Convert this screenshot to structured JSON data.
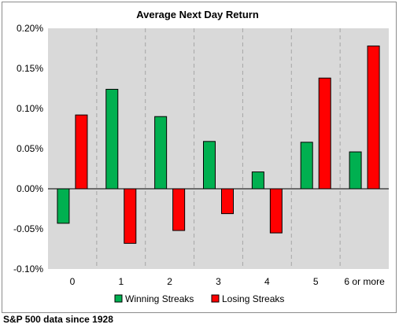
{
  "chart_data": {
    "type": "bar",
    "title": "Average Next Day Return",
    "categories": [
      "0",
      "1",
      "2",
      "3",
      "4",
      "5",
      "6 or more"
    ],
    "series": [
      {
        "name": "Winning Streaks",
        "color": "#00b050",
        "values": [
          -0.043,
          0.124,
          0.09,
          0.059,
          0.021,
          0.058,
          0.046
        ]
      },
      {
        "name": "Losing Streaks",
        "color": "#ff0000",
        "values": [
          0.092,
          -0.068,
          -0.052,
          -0.031,
          -0.055,
          0.138,
          0.178
        ]
      }
    ],
    "ylim": [
      -0.1,
      0.2
    ],
    "yticks": [
      -0.1,
      -0.05,
      0.0,
      0.05,
      0.1,
      0.15,
      0.2
    ],
    "ytick_labels": [
      "-0.10%",
      "-0.05%",
      "0.00%",
      "0.05%",
      "0.10%",
      "0.15%",
      "0.20%"
    ],
    "y_unit": "%",
    "plot_background": "#d9d9d9",
    "gridlines": "dashed vertical between categories",
    "legend_position": "bottom",
    "xlabel": "",
    "ylabel": ""
  },
  "footnote": "S&P 500 data since 1928"
}
